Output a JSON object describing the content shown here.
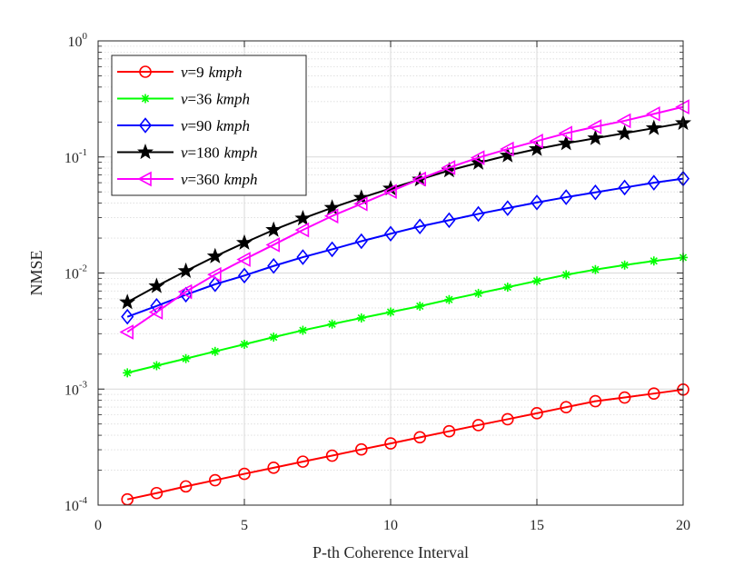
{
  "chart_data": {
    "type": "line",
    "y_scale": "log",
    "xlabel": "P-th Coherence Interval",
    "ylabel": "NMSE",
    "xlim": [
      0,
      20
    ],
    "ylim": [
      0.0001,
      1
    ],
    "grid": true,
    "legend_position": "top-left",
    "x_ticks": [
      0,
      5,
      10,
      15,
      20
    ],
    "y_ticks": [
      {
        "value": 0.0001,
        "base": "10",
        "exp": "-4"
      },
      {
        "value": 0.001,
        "base": "10",
        "exp": "-3"
      },
      {
        "value": 0.01,
        "base": "10",
        "exp": "-2"
      },
      {
        "value": 0.1,
        "base": "10",
        "exp": "-1"
      },
      {
        "value": 1,
        "base": "10",
        "exp": "0"
      }
    ],
    "x": [
      1,
      2,
      3,
      4,
      5,
      6,
      7,
      8,
      9,
      10,
      11,
      12,
      13,
      14,
      15,
      16,
      17,
      18,
      19,
      20
    ],
    "series": [
      {
        "legend_prefix": "v",
        "legend_eq": "=",
        "legend_num": "9",
        "legend_unit": "kmph",
        "color": "#ff0000",
        "marker": "circle",
        "values": [
          0.000112,
          0.000127,
          0.000145,
          0.000164,
          0.000186,
          0.00021,
          0.000237,
          0.000267,
          0.000302,
          0.00034,
          0.000384,
          0.000433,
          0.000489,
          0.00055,
          0.000619,
          0.000698,
          0.000786,
          0.000846,
          0.000915,
          0.00099
        ]
      },
      {
        "legend_prefix": "v",
        "legend_eq": "=",
        "legend_num": "36",
        "legend_unit": "kmph",
        "color": "#00ff00",
        "marker": "asterisk",
        "values": [
          0.00138,
          0.00159,
          0.00183,
          0.00211,
          0.00243,
          0.0028,
          0.00321,
          0.00363,
          0.0041,
          0.00461,
          0.00518,
          0.0059,
          0.00668,
          0.00755,
          0.00855,
          0.00965,
          0.0107,
          0.0117,
          0.0127,
          0.0136
        ]
      },
      {
        "legend_prefix": "v",
        "legend_eq": "=",
        "legend_num": "90",
        "legend_unit": "kmph",
        "color": "#0000ff",
        "marker": "diamond",
        "values": [
          0.0042,
          0.0052,
          0.0065,
          0.008,
          0.0095,
          0.0115,
          0.0137,
          0.016,
          0.0188,
          0.0218,
          0.0252,
          0.0285,
          0.0323,
          0.0362,
          0.0405,
          0.045,
          0.0495,
          0.0545,
          0.06,
          0.065
        ]
      },
      {
        "legend_prefix": "v",
        "legend_eq": "=",
        "legend_num": "180",
        "legend_unit": "kmph",
        "color": "#000000",
        "marker": "star",
        "values": [
          0.0056,
          0.0077,
          0.0104,
          0.0139,
          0.0182,
          0.0235,
          0.0295,
          0.0365,
          0.0445,
          0.0535,
          0.064,
          0.0765,
          0.089,
          0.103,
          0.117,
          0.131,
          0.145,
          0.16,
          0.177,
          0.196
        ]
      },
      {
        "legend_prefix": "v",
        "legend_eq": "=",
        "legend_num": "360",
        "legend_unit": "kmph",
        "color": "#ff00ff",
        "marker": "triangle-left",
        "values": [
          0.0031,
          0.0046,
          0.0069,
          0.0097,
          0.0131,
          0.0175,
          0.0235,
          0.031,
          0.0395,
          0.0505,
          0.0645,
          0.081,
          0.0985,
          0.117,
          0.137,
          0.16,
          0.182,
          0.205,
          0.235,
          0.27
        ]
      }
    ]
  }
}
